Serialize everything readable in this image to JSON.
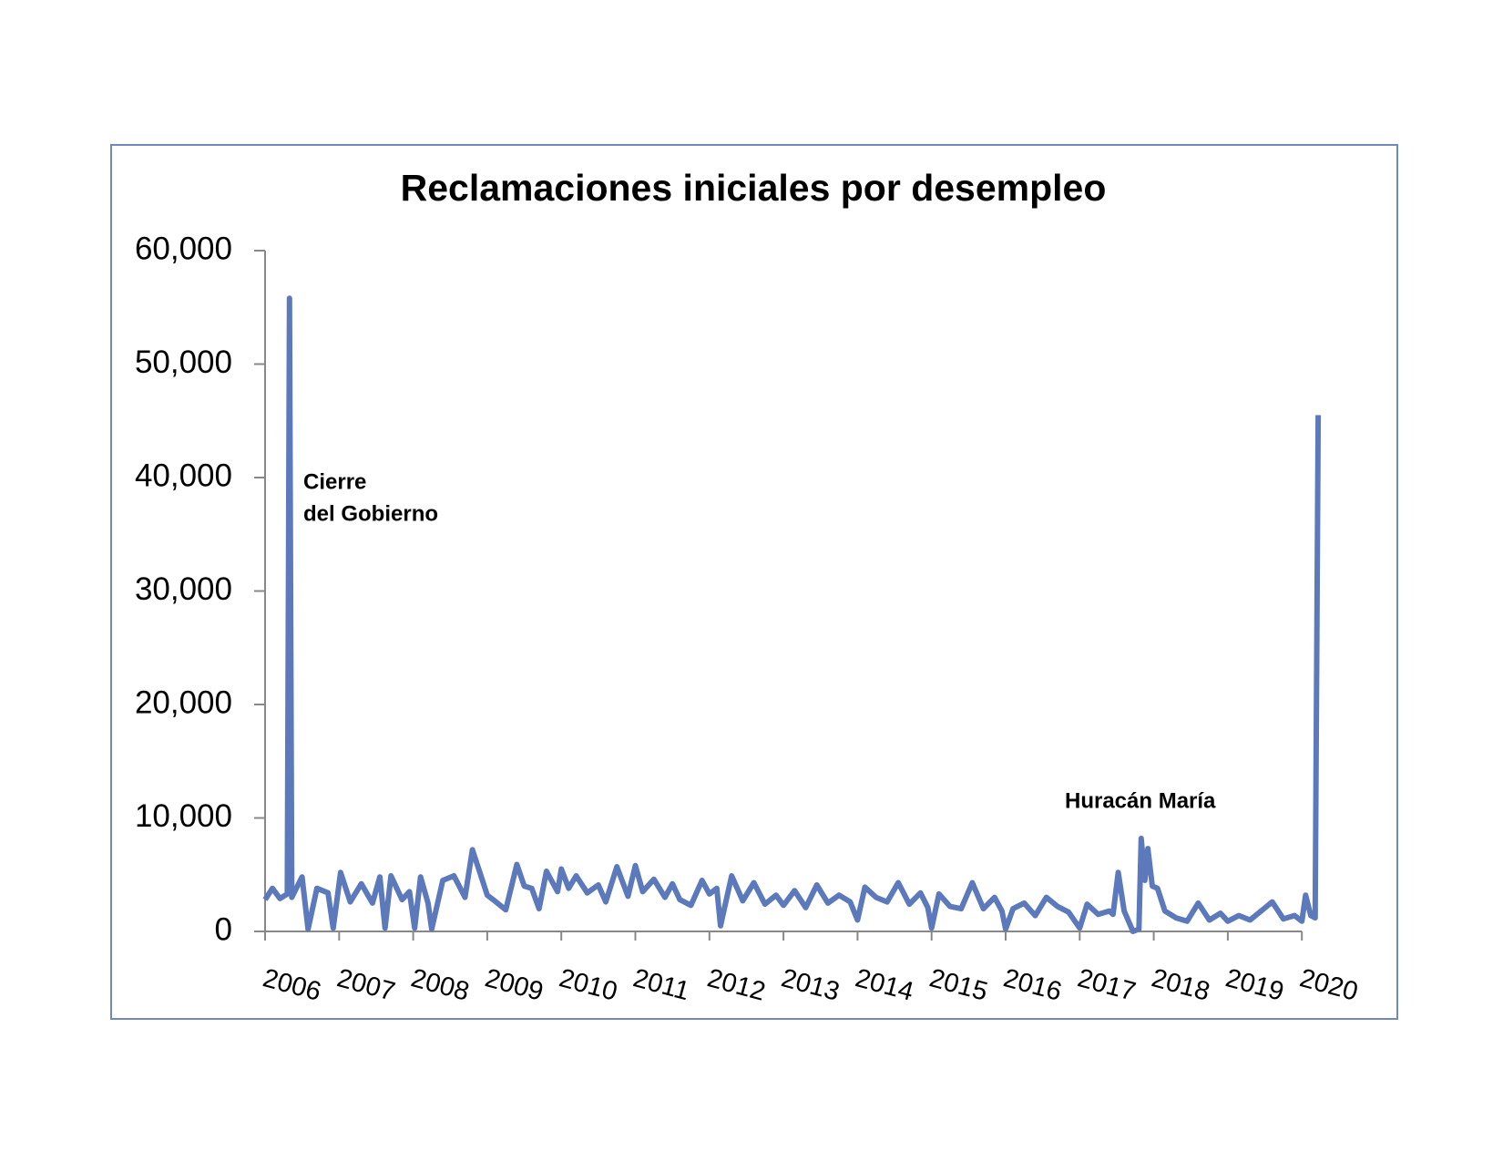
{
  "chart_data": {
    "type": "line",
    "title": "Reclamaciones iniciales por desempleo",
    "annotations": [
      [
        "Cierre",
        "del Gobierno"
      ],
      [
        "Huracán María"
      ]
    ],
    "xlim": [
      2006,
      2020.3
    ],
    "xticks": [
      2006,
      2007,
      2008,
      2009,
      2010,
      2011,
      2012,
      2013,
      2014,
      2015,
      2016,
      2017,
      2018,
      2019,
      2020
    ],
    "ylim": [
      0,
      60000
    ],
    "yticks": [
      0,
      {
        "value": 10000,
        "label": "10,000"
      },
      {
        "value": 20000,
        "label": "20,000"
      },
      {
        "value": 30000,
        "label": "30,000"
      },
      {
        "value": 40000,
        "label": "40,000"
      },
      {
        "value": 50000,
        "label": "50,000"
      },
      {
        "value": 60000,
        "label": "60,000"
      }
    ],
    "grid": false,
    "series": [
      {
        "color": "#5b79bb",
        "x": [
          2006,
          2006.1,
          2006.2,
          2006.3,
          2006.33,
          2006.36,
          2006.5,
          2006.58,
          2006.7,
          2006.85,
          2006.92,
          2007.02,
          2007.15,
          2007.3,
          2007.45,
          2007.55,
          2007.62,
          2007.7,
          2007.85,
          2007.95,
          2008.02,
          2008.1,
          2008.2,
          2008.25,
          2008.4,
          2008.55,
          2008.7,
          2008.8,
          2008.9,
          2009.0,
          2009.1,
          2009.25,
          2009.4,
          2009.5,
          2009.6,
          2009.7,
          2009.8,
          2009.95,
          2010.0,
          2010.1,
          2010.2,
          2010.35,
          2010.5,
          2010.6,
          2010.75,
          2010.9,
          2011.0,
          2011.1,
          2011.25,
          2011.4,
          2011.5,
          2011.6,
          2011.75,
          2011.9,
          2012.0,
          2012.1,
          2012.15,
          2012.3,
          2012.45,
          2012.6,
          2012.75,
          2012.9,
          2013.0,
          2013.15,
          2013.3,
          2013.45,
          2013.6,
          2013.75,
          2013.9,
          2014.0,
          2014.1,
          2014.25,
          2014.4,
          2014.55,
          2014.7,
          2014.85,
          2014.95,
          2015.0,
          2015.1,
          2015.25,
          2015.4,
          2015.55,
          2015.7,
          2015.85,
          2015.95,
          2016.0,
          2016.1,
          2016.25,
          2016.4,
          2016.55,
          2016.7,
          2016.85,
          2017.0,
          2017.1,
          2017.25,
          2017.4,
          2017.45,
          2017.52,
          2017.6,
          2017.72,
          2017.8,
          2017.83,
          2017.88,
          2017.92,
          2017.98,
          2018.05,
          2018.15,
          2018.3,
          2018.45,
          2018.6,
          2018.75,
          2018.9,
          2019.0,
          2019.15,
          2019.3,
          2019.45,
          2019.6,
          2019.75,
          2019.9,
          2020.0,
          2020.05,
          2020.12,
          2020.18,
          2020.22
        ],
        "values": [
          2800,
          3800,
          2900,
          3300,
          55800,
          3000,
          4800,
          200,
          3800,
          3400,
          300,
          5200,
          2600,
          4200,
          2500,
          4800,
          300,
          4900,
          2800,
          3500,
          300,
          4800,
          2500,
          200,
          4500,
          4900,
          3000,
          7200,
          5200,
          3200,
          2700,
          1900,
          5900,
          4000,
          3800,
          2000,
          5300,
          3500,
          5500,
          3800,
          4900,
          3400,
          4100,
          2600,
          5700,
          3100,
          5800,
          3500,
          4600,
          3000,
          4200,
          2800,
          2300,
          4500,
          3300,
          3800,
          500,
          4900,
          2700,
          4300,
          2400,
          3200,
          2300,
          3600,
          2100,
          4100,
          2500,
          3200,
          2600,
          1000,
          3900,
          3000,
          2600,
          4300,
          2400,
          3400,
          2100,
          300,
          3300,
          2200,
          2000,
          4300,
          2000,
          3000,
          1800,
          200,
          2000,
          2500,
          1400,
          3000,
          2200,
          1700,
          300,
          2400,
          1500,
          1800,
          1500,
          5200,
          1800,
          0,
          200,
          8200,
          4500,
          7300,
          4000,
          3800,
          1800,
          1200,
          900,
          2500,
          1000,
          1600,
          900,
          1400,
          1000,
          1800,
          2600,
          1100,
          1400,
          900,
          3200,
          1400,
          1200,
          45500
        ]
      }
    ]
  }
}
